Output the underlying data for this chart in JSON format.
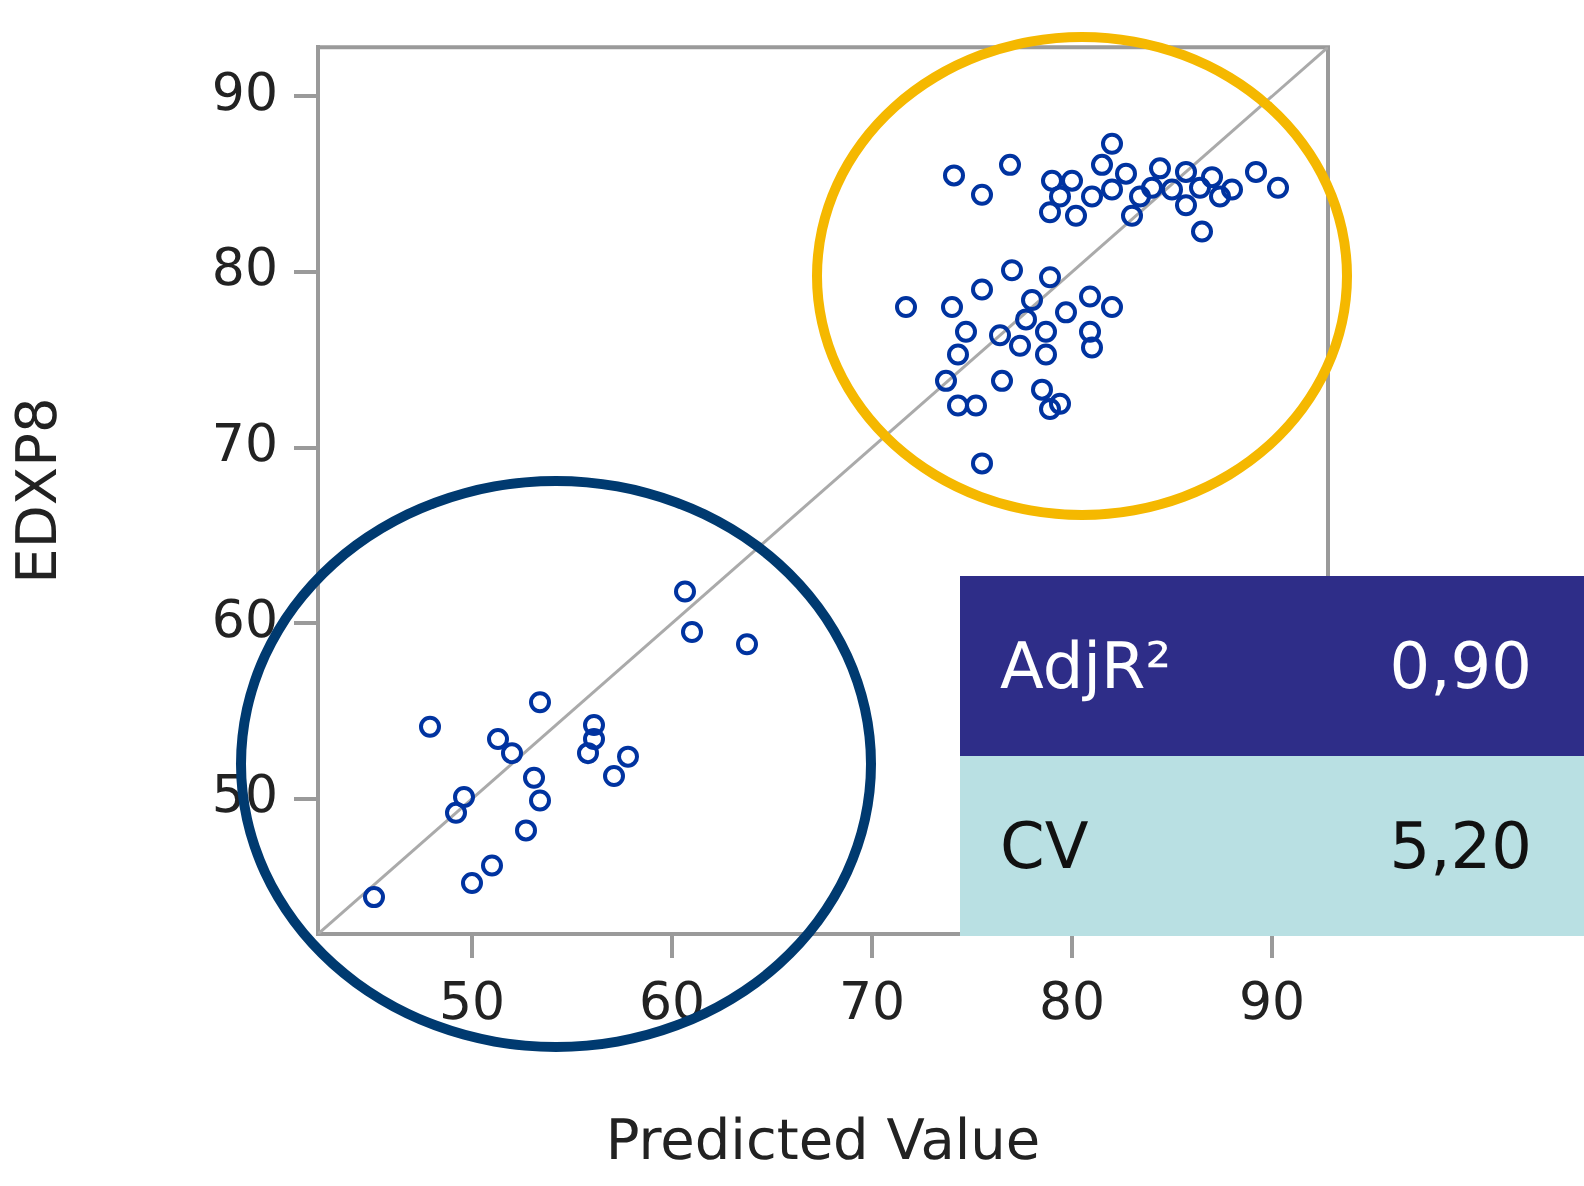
{
  "chart_data": {
    "type": "scatter",
    "xlabel": "Predicted Value",
    "ylabel": "EDXP8",
    "xlim": [
      42.3,
      92.8
    ],
    "ylim": [
      42.3,
      92.8
    ],
    "xticks": [
      50,
      60,
      70,
      80,
      90
    ],
    "yticks": [
      50,
      60,
      70,
      80,
      90
    ],
    "marker": "circle",
    "legend": false,
    "annotations": [
      "AdjR²",
      "0,90",
      "CV",
      "5,20"
    ],
    "series": [
      {
        "color": "#0033a0",
        "x": [
          60.65,
          61.0,
          63.75,
          53.4,
          47.9,
          51.3,
          52.0,
          56.1,
          56.1,
          55.8,
          57.8,
          57.1,
          53.1,
          53.4,
          49.6,
          49.2,
          52.7,
          51.0,
          50.0,
          45.1,
          82.0,
          76.9,
          74.1,
          75.5,
          79.0,
          80.0,
          79.4,
          78.9,
          80.2,
          81.0,
          81.5,
          82.7,
          82.0,
          83.4,
          83.0,
          84.4,
          85.7,
          85.0,
          86.4,
          85.7,
          86.5,
          87.4,
          88.0,
          89.2,
          90.3,
          87.0,
          84.0,
          71.7,
          74.0,
          75.5,
          77.0,
          78.9,
          80.9,
          82.0,
          74.7,
          76.4,
          77.7,
          78.7,
          77.4,
          78.7,
          80.9,
          81.0,
          74.3,
          73.7,
          76.5,
          74.3,
          75.2,
          78.5,
          79.4,
          78.9,
          75.5,
          78.0,
          79.7
        ],
        "values": [
          61.8,
          59.5,
          58.8,
          55.5,
          54.1,
          53.4,
          52.6,
          54.2,
          53.4,
          52.6,
          52.4,
          51.3,
          51.2,
          49.9,
          50.1,
          49.2,
          48.2,
          46.2,
          45.2,
          44.4,
          87.3,
          86.1,
          85.5,
          84.4,
          85.2,
          85.2,
          84.3,
          83.4,
          83.2,
          84.3,
          86.1,
          85.6,
          84.7,
          84.3,
          83.2,
          85.9,
          85.7,
          84.7,
          84.8,
          83.8,
          82.3,
          84.3,
          84.7,
          85.7,
          84.8,
          85.4,
          84.8,
          78.0,
          78.0,
          79.0,
          80.1,
          79.7,
          78.6,
          78.0,
          76.6,
          76.4,
          77.3,
          76.6,
          75.8,
          75.3,
          76.6,
          75.7,
          75.3,
          73.8,
          73.8,
          72.4,
          72.4,
          73.3,
          72.5,
          72.2,
          69.1,
          78.4,
          77.7
        ]
      },
      {
        "type": "line",
        "color": "#aaaaaa",
        "marker": "none",
        "x": [
          42.3,
          92.8
        ],
        "values": [
          42.3,
          92.8
        ]
      }
    ]
  }
}
